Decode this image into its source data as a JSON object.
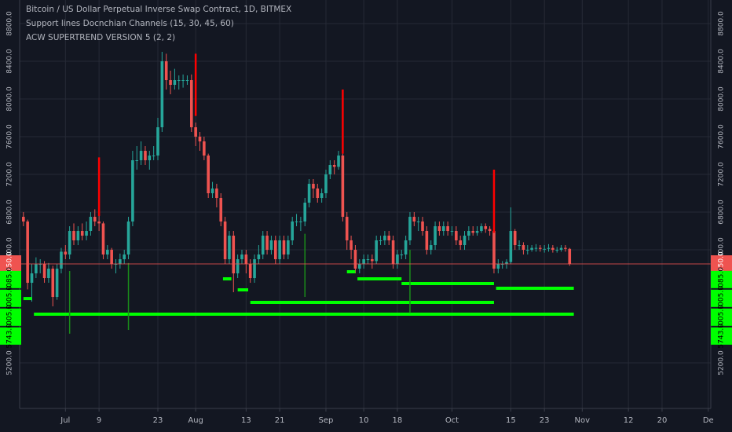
{
  "chart_data": {
    "type": "candlestick",
    "legend_lines": [
      "Bitcoin / US Dollar Perpetual Inverse Swap Contract, 1D, BITMEX",
      "Support lines Docnchian Channels (15, 30, 45, 60)",
      "ACW SUPERTREND VERSION 5 (2, 2)"
    ],
    "up_color": "#26a69a",
    "down_color": "#ef5350",
    "open": [
      6750,
      6700,
      6050,
      6150,
      6250,
      6250,
      6100,
      6200,
      5900,
      6200,
      6380,
      6350,
      6600,
      6500,
      6600,
      6550,
      6600,
      6750,
      6700,
      6680,
      6350,
      6400,
      6250,
      6250,
      6300,
      6350,
      6700,
      7350,
      7350,
      7450,
      7350,
      7400,
      7400,
      7700,
      8400,
      8200,
      8150,
      8200,
      8200,
      8200,
      8200,
      7700,
      7600,
      7550,
      7400,
      7000,
      7050,
      6950,
      6700,
      6300,
      6550,
      6150,
      6300,
      6350,
      6250,
      6100,
      6300,
      6350,
      6550,
      6400,
      6500,
      6300,
      6500,
      6350,
      6500,
      6700,
      6700,
      6700,
      6900,
      7100,
      7050,
      6950,
      7000,
      7200,
      7300,
      7280,
      7400,
      6750,
      6500,
      6400,
      6200,
      6250,
      6300,
      6300,
      6280,
      6500,
      6500,
      6550,
      6500,
      6250,
      6350,
      6350,
      6500,
      6750,
      6700,
      6700,
      6600,
      6400,
      6450,
      6650,
      6600,
      6650,
      6600,
      6600,
      6500,
      6450,
      6550,
      6600,
      6580,
      6600,
      6650,
      6620,
      6600,
      6200,
      6250,
      6250,
      6270,
      6600,
      6450,
      6450,
      6400,
      6400,
      6420,
      6420,
      6410,
      6410,
      6420,
      6400,
      6400,
      6420,
      6410
    ],
    "high": [
      6800,
      6720,
      6250,
      6320,
      6300,
      6280,
      6260,
      6230,
      6250,
      6420,
      6450,
      6650,
      6680,
      6650,
      6680,
      6700,
      6800,
      6830,
      6770,
      6700,
      6450,
      6420,
      6300,
      6360,
      6400,
      6750,
      7450,
      7500,
      7550,
      7500,
      7450,
      7500,
      7800,
      8500,
      8480,
      8300,
      8320,
      8250,
      8260,
      8250,
      8260,
      7750,
      7650,
      7600,
      7420,
      7120,
      7100,
      7000,
      6750,
      6600,
      6600,
      6350,
      6400,
      6400,
      6300,
      6350,
      6450,
      6600,
      6600,
      6550,
      6550,
      6550,
      6550,
      6550,
      6750,
      6780,
      6750,
      6950,
      7150,
      7150,
      7100,
      7050,
      7250,
      7350,
      7350,
      7450,
      7420,
      6800,
      6550,
      6450,
      6300,
      6350,
      6350,
      6350,
      6550,
      6550,
      6600,
      6600,
      6550,
      6400,
      6400,
      6550,
      6800,
      6800,
      6750,
      6750,
      6650,
      6500,
      6700,
      6700,
      6700,
      6700,
      6650,
      6650,
      6550,
      6600,
      6650,
      6650,
      6650,
      6680,
      6680,
      6650,
      6620,
      6300,
      6280,
      6300,
      6850,
      6620,
      6500,
      6480,
      6450,
      6450,
      6460,
      6450,
      6450,
      6460,
      6450,
      6430,
      6450,
      6450,
      6420
    ],
    "low": [
      6650,
      5980,
      5850,
      6100,
      6150,
      6050,
      6050,
      5800,
      5870,
      6150,
      6300,
      6300,
      6450,
      6450,
      6500,
      6500,
      6550,
      6650,
      6600,
      6300,
      6300,
      6200,
      6150,
      6200,
      6250,
      6300,
      6650,
      7250,
      7300,
      7300,
      7250,
      7350,
      7350,
      7650,
      8100,
      8050,
      8100,
      8100,
      8120,
      8150,
      7650,
      7500,
      7450,
      7350,
      6950,
      6950,
      6850,
      6650,
      6250,
      6250,
      5950,
      6100,
      6250,
      6150,
      6050,
      6050,
      6250,
      6300,
      6350,
      6350,
      6250,
      6250,
      6300,
      6300,
      6450,
      6650,
      6600,
      6650,
      6850,
      6950,
      6900,
      6900,
      6950,
      7150,
      7200,
      7250,
      6700,
      6400,
      6300,
      6150,
      6150,
      6200,
      6250,
      6200,
      6250,
      6450,
      6450,
      6450,
      6200,
      6200,
      6300,
      6300,
      6450,
      6650,
      6600,
      6550,
      6350,
      6350,
      6400,
      6550,
      6550,
      6550,
      6550,
      6450,
      6400,
      6400,
      6500,
      6550,
      6550,
      6580,
      6580,
      6550,
      6150,
      6150,
      6200,
      6200,
      6250,
      6400,
      6400,
      6350,
      6350,
      6380,
      6380,
      6380,
      6370,
      6380,
      6370,
      6370,
      6380,
      6380,
      6230
    ],
    "close": [
      6700,
      6050,
      6150,
      6250,
      6250,
      6100,
      6200,
      5900,
      6200,
      6380,
      6350,
      6600,
      6500,
      6600,
      6550,
      6600,
      6750,
      6700,
      6680,
      6350,
      6400,
      6250,
      6250,
      6300,
      6350,
      6700,
      7350,
      7350,
      7450,
      7350,
      7400,
      7400,
      7700,
      8400,
      8200,
      8150,
      8200,
      8200,
      8200,
      8200,
      7700,
      7600,
      7550,
      7400,
      7000,
      7050,
      6950,
      6700,
      6300,
      6550,
      6150,
      6300,
      6350,
      6250,
      6100,
      6300,
      6350,
      6550,
      6400,
      6500,
      6300,
      6500,
      6350,
      6500,
      6700,
      6700,
      6700,
      6900,
      7100,
      7050,
      6950,
      7000,
      7200,
      7300,
      7280,
      7400,
      6750,
      6500,
      6400,
      6200,
      6250,
      6300,
      6300,
      6280,
      6500,
      6500,
      6550,
      6500,
      6250,
      6350,
      6350,
      6500,
      6750,
      6700,
      6700,
      6600,
      6400,
      6450,
      6650,
      6600,
      6650,
      6600,
      6600,
      6500,
      6450,
      6550,
      6600,
      6580,
      6600,
      6650,
      6620,
      6600,
      6200,
      6250,
      6250,
      6270,
      6600,
      6450,
      6450,
      6400,
      6400,
      6420,
      6420,
      6410,
      6410,
      6420,
      6400,
      6400,
      6420,
      6410,
      6250
    ],
    "sell_signals": {
      "color": "#ff0000",
      "x": [
        18,
        41,
        76,
        112
      ],
      "top": [
        7380,
        8480,
        8100,
        7250
      ],
      "bottom": [
        6760,
        7820,
        7420,
        6580
      ]
    },
    "buy_signals": {
      "color": "#1a8c1a",
      "x": [
        11,
        25,
        67,
        92
      ],
      "top": [
        6175,
        6260,
        6570,
        6400
      ],
      "bottom": [
        5510,
        5550,
        5900,
        5730
      ]
    },
    "support_lines": {
      "color": "#00ff00",
      "start": [
        0,
        2.5,
        47.5,
        51,
        54,
        77,
        79.5,
        90,
        112.5
      ],
      "end": [
        2,
        131,
        49.5,
        53.5,
        112,
        79,
        90,
        112,
        131
      ],
      "level": [
        5883,
        5717,
        6092,
        5975,
        5842,
        6167,
        6092,
        6042,
        5992
      ]
    },
    "current_price": {
      "value": 6250,
      "label": "6250.0"
    },
    "price_labels": [
      {
        "value": 6085,
        "label": "6085.0"
      },
      {
        "value": 6005,
        "label": "6005.0"
      },
      {
        "value": 6005,
        "label": "6005.0"
      },
      {
        "value": 5743,
        "label": "5743.0"
      }
    ],
    "xlim": [
      -0.9,
      163.6
    ],
    "ylim": [
      4717,
      9050
    ],
    "xticks": [
      {
        "value": 10,
        "label": "Jul"
      },
      {
        "value": 18,
        "label": "9"
      },
      {
        "value": 32,
        "label": "23"
      },
      {
        "value": 41,
        "label": "Aug"
      },
      {
        "value": 53,
        "label": "13"
      },
      {
        "value": 61,
        "label": "21"
      },
      {
        "value": 72,
        "label": "Sep"
      },
      {
        "value": 81,
        "label": "10"
      },
      {
        "value": 89,
        "label": "18"
      },
      {
        "value": 102,
        "label": "Oct"
      },
      {
        "value": 116,
        "label": "15"
      },
      {
        "value": 124,
        "label": "23"
      },
      {
        "value": 133,
        "label": "Nov"
      },
      {
        "value": 144,
        "label": "12"
      },
      {
        "value": 152,
        "label": "20"
      },
      {
        "value": 163,
        "label": "De"
      }
    ],
    "yticks": [
      {
        "value": 5200,
        "label": "5200.0"
      },
      {
        "value": 6400,
        "label": "6400.0"
      },
      {
        "value": 6800,
        "label": "6800.0"
      },
      {
        "value": 7200,
        "label": "7200.0"
      },
      {
        "value": 7600,
        "label": "7600.0"
      },
      {
        "value": 8000,
        "label": "8000.0"
      },
      {
        "value": 8400,
        "label": "8400.0"
      },
      {
        "value": 8800,
        "label": "8800.0"
      }
    ],
    "grid": true
  }
}
